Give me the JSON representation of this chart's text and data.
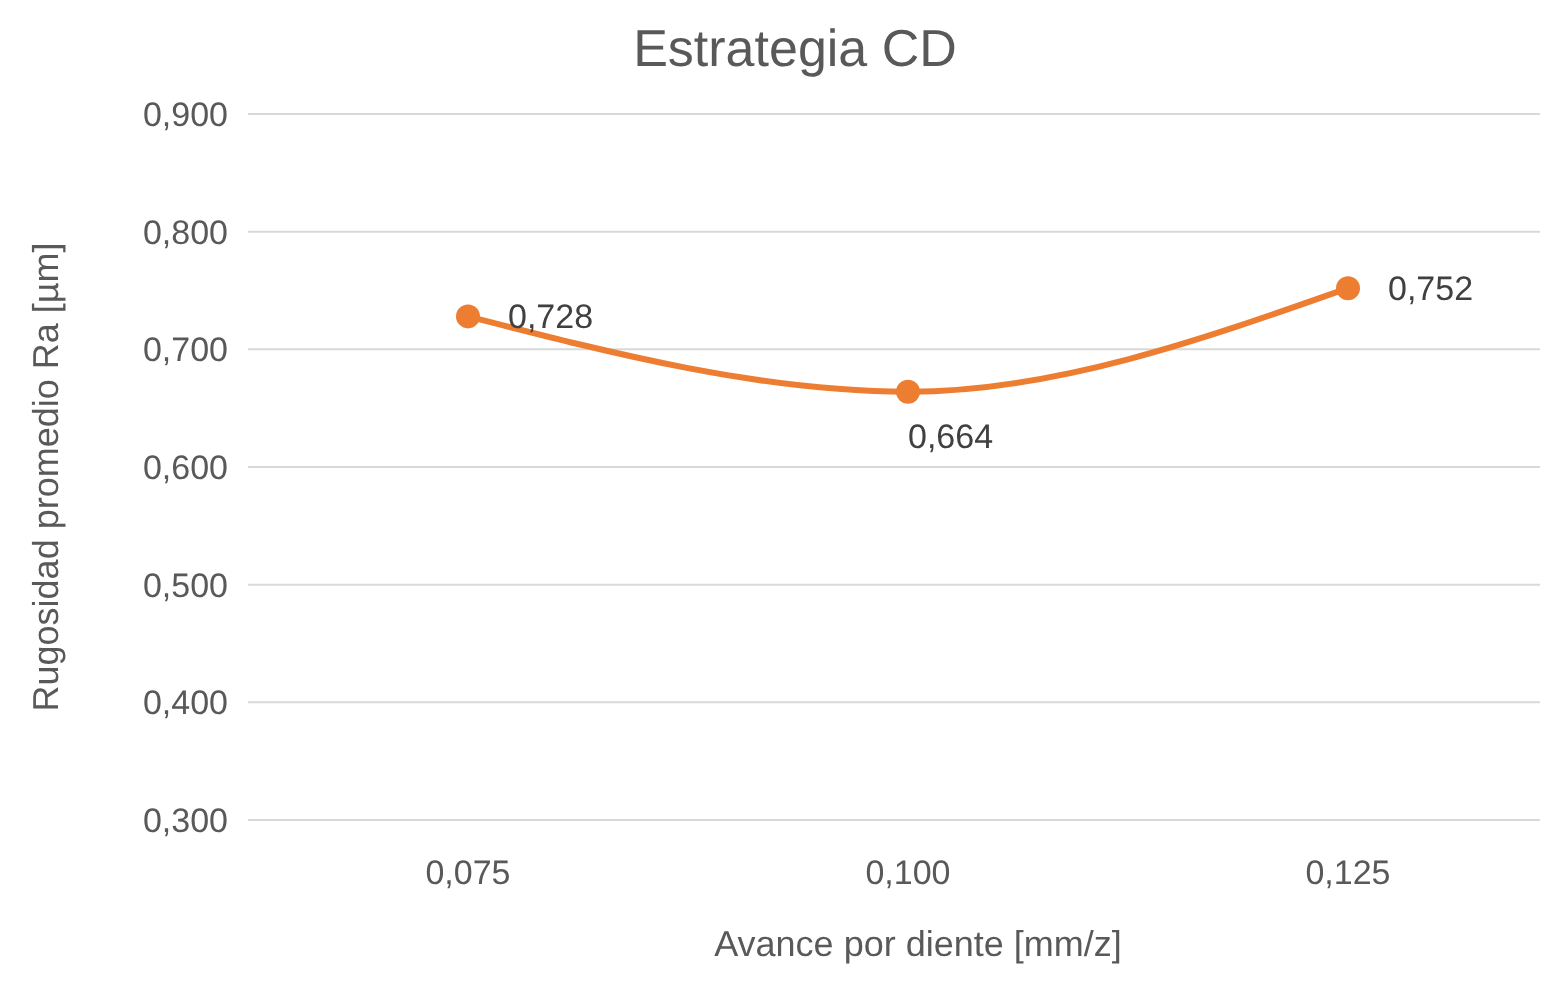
{
  "chart_data": {
    "type": "line",
    "title": "Estrategia CD",
    "xlabel": "Avance por diente [mm/z]",
    "ylabel": "Rugosidad promedio Ra [µm]",
    "categories": [
      "0,075",
      "0,100",
      "0,125"
    ],
    "series": [
      {
        "color": "#ed7d31",
        "values": [
          0.728,
          0.664,
          0.752
        ],
        "value_labels": [
          "0,728",
          "0,664",
          "0,752"
        ]
      }
    ],
    "ylim": [
      0.3,
      0.9
    ],
    "yticks": [
      {
        "value": 0.3,
        "label": "0,300"
      },
      {
        "value": 0.4,
        "label": "0,400"
      },
      {
        "value": 0.5,
        "label": "0,500"
      },
      {
        "value": 0.6,
        "label": "0,600"
      },
      {
        "value": 0.7,
        "label": "0,700"
      },
      {
        "value": 0.8,
        "label": "0,800"
      },
      {
        "value": 0.9,
        "label": "0,900"
      }
    ],
    "grid": "y",
    "marker": "circle",
    "line_style": "solid"
  }
}
